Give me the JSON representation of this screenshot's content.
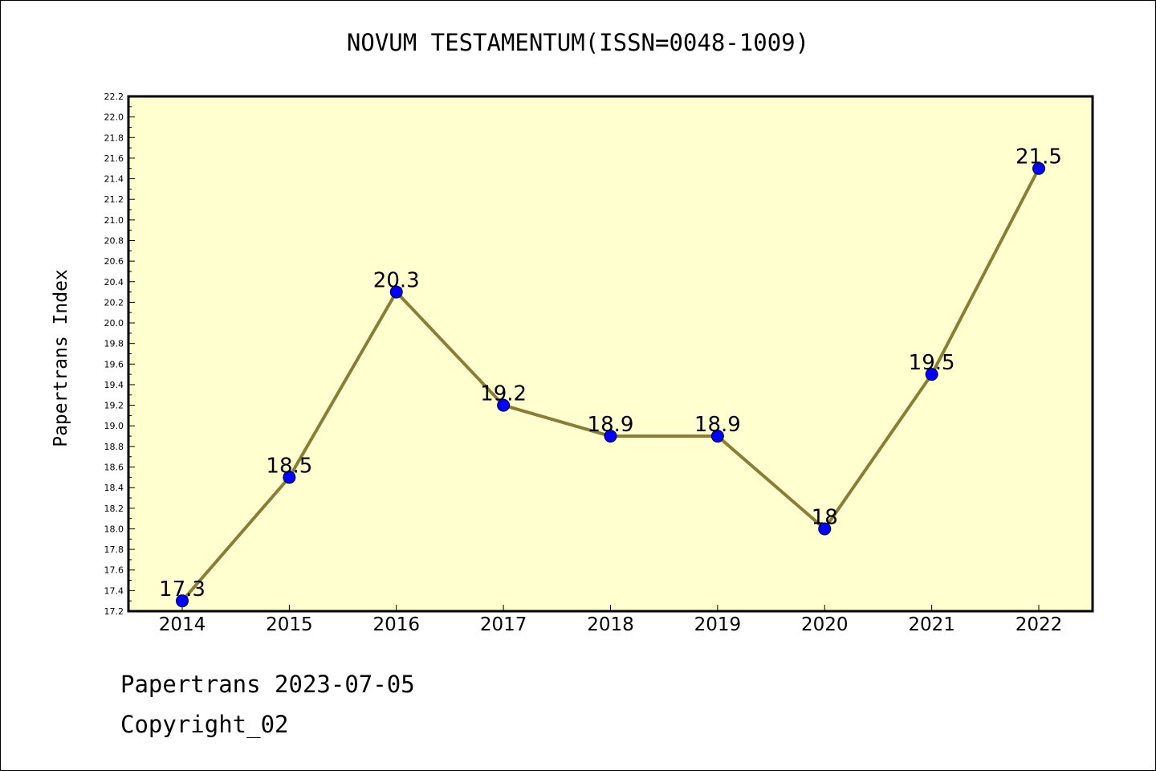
{
  "title": "NOVUM TESTAMENTUM(ISSN=0048-1009)",
  "footer": {
    "line1": "Papertrans 2023-07-05",
    "line2": "Copyright_02"
  },
  "colors": {
    "plot_background": "#ffffd0",
    "line": "#8b7d35",
    "marker": "#0000ff"
  },
  "chart_data": {
    "type": "line",
    "ylabel": "Papertrans Index",
    "ylim": [
      17.2,
      22.2
    ],
    "y_major_step": 0.2,
    "grid": false,
    "categories": [
      "2014",
      "2015",
      "2016",
      "2017",
      "2018",
      "2019",
      "2020",
      "2021",
      "2022"
    ],
    "values": [
      17.3,
      18.5,
      20.3,
      19.2,
      18.9,
      18.9,
      18.0,
      19.5,
      21.5
    ],
    "data_labels": [
      "17.3",
      "18.5",
      "20.3",
      "19.2",
      "18.9",
      "18.9",
      "18",
      "19.5",
      "21.5"
    ]
  }
}
